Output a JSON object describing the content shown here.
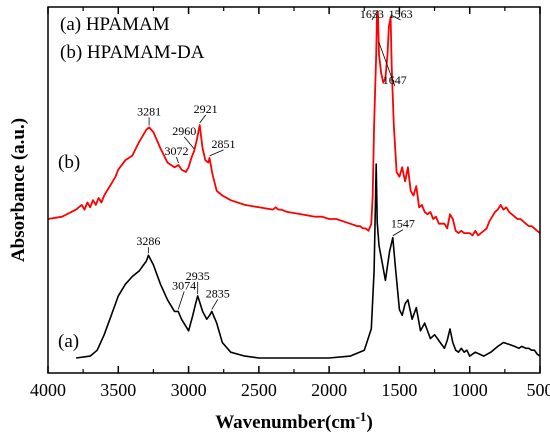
{
  "chart_data": {
    "type": "line",
    "xlabel": "Wavenumber(cm",
    "xlabel_sup": "-1",
    "xlabel_close": ")",
    "ylabel": "Absorbance (a.u.)",
    "xlim": [
      4000,
      500
    ],
    "x_reversed": true,
    "xticks": [
      4000,
      3500,
      3000,
      2500,
      2000,
      1500,
      1000,
      500
    ],
    "yaxis_tick_labels": false,
    "legend": {
      "placement": "top-left",
      "entries": [
        "(a) HPAMAM",
        "(b) HPAMAM-DA"
      ]
    },
    "series": [
      {
        "label": "(a)",
        "color": "#000000",
        "baseline": 0.0,
        "x": [
          3800,
          3700,
          3650,
          3600,
          3550,
          3500,
          3450,
          3400,
          3350,
          3300,
          3286,
          3250,
          3200,
          3150,
          3100,
          3074,
          3050,
          3000,
          2970,
          2950,
          2935,
          2900,
          2870,
          2850,
          2835,
          2800,
          2760,
          2700,
          2600,
          2500,
          2400,
          2200,
          2000,
          1850,
          1750,
          1700,
          1680,
          1665,
          1658,
          1645,
          1620,
          1600,
          1570,
          1547,
          1530,
          1500,
          1480,
          1460,
          1440,
          1410,
          1380,
          1350,
          1320,
          1280,
          1250,
          1220,
          1180,
          1160,
          1140,
          1120,
          1100,
          1080,
          1060,
          1040,
          1020,
          1000,
          960,
          900,
          850,
          800,
          760,
          720,
          680,
          650,
          630,
          600,
          580,
          560,
          540,
          520,
          500
        ],
        "y": [
          0.0,
          0.01,
          0.04,
          0.12,
          0.22,
          0.32,
          0.38,
          0.42,
          0.45,
          0.5,
          0.53,
          0.48,
          0.38,
          0.3,
          0.24,
          0.24,
          0.2,
          0.14,
          0.22,
          0.28,
          0.32,
          0.24,
          0.2,
          0.22,
          0.24,
          0.18,
          0.08,
          0.03,
          0.01,
          0.0,
          0.0,
          0.0,
          0.0,
          0.01,
          0.04,
          0.15,
          0.45,
          1.0,
          0.7,
          0.58,
          0.48,
          0.4,
          0.55,
          0.62,
          0.48,
          0.25,
          0.22,
          0.28,
          0.3,
          0.2,
          0.26,
          0.14,
          0.18,
          0.1,
          0.12,
          0.09,
          0.05,
          0.09,
          0.15,
          0.08,
          0.04,
          0.03,
          0.05,
          0.03,
          0.04,
          0.01,
          0.03,
          0.01,
          0.03,
          0.06,
          0.08,
          0.07,
          0.06,
          0.05,
          0.06,
          0.05,
          0.05,
          0.04,
          0.04,
          0.02,
          0.01
        ]
      },
      {
        "label": "(b)",
        "color": "#ff0000",
        "baseline": 0.0,
        "x": [
          4000,
          3900,
          3800,
          3760,
          3740,
          3720,
          3700,
          3680,
          3660,
          3640,
          3620,
          3600,
          3580,
          3560,
          3540,
          3520,
          3500,
          3450,
          3400,
          3350,
          3300,
          3281,
          3250,
          3200,
          3150,
          3100,
          3072,
          3050,
          3020,
          3000,
          2980,
          2960,
          2940,
          2921,
          2900,
          2880,
          2860,
          2851,
          2830,
          2800,
          2760,
          2700,
          2600,
          2500,
          2400,
          2380,
          2360,
          2340,
          2300,
          2200,
          2100,
          2050,
          2000,
          1950,
          1900,
          1850,
          1800,
          1780,
          1760,
          1740,
          1720,
          1700,
          1690,
          1680,
          1670,
          1665,
          1660,
          1653,
          1645,
          1630,
          1615,
          1600,
          1585,
          1575,
          1568,
          1563,
          1555,
          1540,
          1520,
          1500,
          1480,
          1460,
          1440,
          1420,
          1400,
          1380,
          1360,
          1340,
          1320,
          1300,
          1280,
          1260,
          1240,
          1220,
          1200,
          1180,
          1160,
          1140,
          1120,
          1100,
          1080,
          1060,
          1040,
          1020,
          1000,
          980,
          960,
          940,
          920,
          900,
          880,
          860,
          840,
          820,
          800,
          780,
          760,
          740,
          720,
          700,
          680,
          660,
          640,
          620,
          600,
          580,
          560,
          540,
          520,
          500
        ],
        "y": [
          0.6,
          0.61,
          0.64,
          0.66,
          0.64,
          0.67,
          0.65,
          0.68,
          0.66,
          0.69,
          0.67,
          0.7,
          0.72,
          0.74,
          0.76,
          0.78,
          0.81,
          0.85,
          0.87,
          0.93,
          0.98,
          0.99,
          0.97,
          0.9,
          0.84,
          0.82,
          0.83,
          0.81,
          0.8,
          0.82,
          0.86,
          0.89,
          0.94,
          1.0,
          0.9,
          0.85,
          0.84,
          0.86,
          0.79,
          0.72,
          0.7,
          0.68,
          0.66,
          0.65,
          0.64,
          0.65,
          0.64,
          0.64,
          0.63,
          0.62,
          0.61,
          0.61,
          0.6,
          0.6,
          0.59,
          0.58,
          0.57,
          0.57,
          0.56,
          0.56,
          0.55,
          0.58,
          0.7,
          1.0,
          1.2,
          1.3,
          1.45,
          1.48,
          1.3,
          1.22,
          1.18,
          1.2,
          1.3,
          1.42,
          1.44,
          1.46,
          1.25,
          1.0,
          0.8,
          0.78,
          0.82,
          0.76,
          0.82,
          0.72,
          0.7,
          0.74,
          0.65,
          0.66,
          0.63,
          0.62,
          0.63,
          0.6,
          0.61,
          0.58,
          0.58,
          0.58,
          0.56,
          0.62,
          0.6,
          0.55,
          0.54,
          0.55,
          0.54,
          0.54,
          0.54,
          0.53,
          0.55,
          0.53,
          0.54,
          0.55,
          0.56,
          0.59,
          0.61,
          0.63,
          0.64,
          0.66,
          0.64,
          0.65,
          0.63,
          0.62,
          0.61,
          0.6,
          0.6,
          0.59,
          0.58,
          0.57,
          0.57,
          0.56,
          0.55,
          0.54
        ]
      }
    ],
    "annotations": [
      {
        "text": "3286",
        "series": 0,
        "x": 3286
      },
      {
        "text": "3074",
        "series": 0,
        "x": 3074
      },
      {
        "text": "2935",
        "series": 0,
        "x": 2935
      },
      {
        "text": "2835",
        "series": 0,
        "x": 2835
      },
      {
        "text": "1547",
        "series": 0,
        "x": 1547
      },
      {
        "text": "3281",
        "series": 1,
        "x": 3281
      },
      {
        "text": "3072",
        "series": 1,
        "x": 3072
      },
      {
        "text": "2960",
        "series": 1,
        "x": 2960
      },
      {
        "text": "2921",
        "series": 1,
        "x": 2921
      },
      {
        "text": "2851",
        "series": 1,
        "x": 2851
      },
      {
        "text": "1653",
        "series": 1,
        "x": 1653
      },
      {
        "text": "1563",
        "series": 1,
        "x": 1563
      },
      {
        "text": "1647",
        "series": 1,
        "x": 1647
      }
    ],
    "grid": false
  }
}
